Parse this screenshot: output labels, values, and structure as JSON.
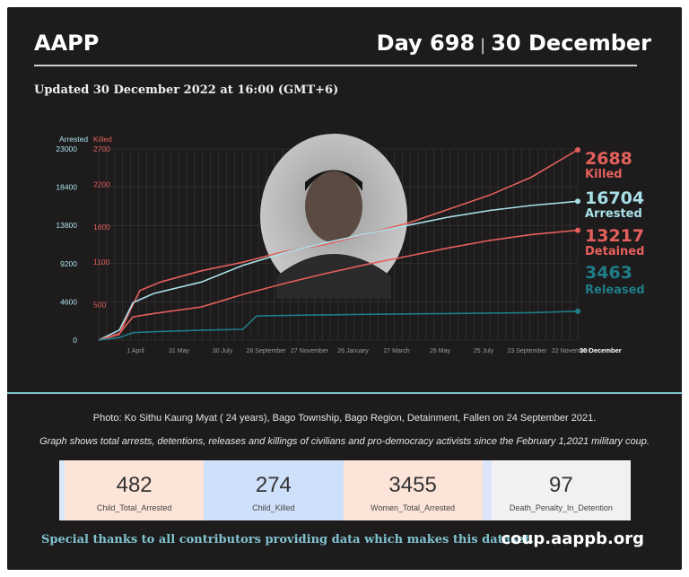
{
  "header": {
    "org": "AAPP",
    "day": "Day 698",
    "separator": "|",
    "date": "30 December",
    "updated": "Updated 30 December 2022 at 16:00 (GMT+6)"
  },
  "colors": {
    "background": "#1d1b1c",
    "killed": "#e4605c",
    "arrested": "#a9e0e8",
    "detained": "#e4605c",
    "released": "#1f7d88",
    "teal_text": "#7fc3cf"
  },
  "chart_data": {
    "type": "line",
    "left_axis": {
      "label": "Arrested",
      "ticks": [
        0,
        4600,
        9200,
        13800,
        18400,
        23000
      ],
      "range": [
        0,
        23000
      ]
    },
    "right_axis": {
      "label": "Killed",
      "ticks": [
        0,
        500,
        1100,
        1600,
        2200,
        2700
      ],
      "range": [
        0,
        2700
      ]
    },
    "x_ticks": [
      "1 April",
      "31 May",
      "30 July",
      "28 September",
      "27 November",
      "26 January",
      "27 March",
      "26 May",
      "25 July",
      "23 September",
      "22 November",
      "30 December"
    ],
    "x_range_days": [
      0,
      698
    ],
    "grid": true,
    "series": [
      {
        "name": "Killed",
        "axis": "right",
        "final_value": 2688,
        "points": [
          [
            0,
            0
          ],
          [
            30,
            80
          ],
          [
            45,
            400
          ],
          [
            60,
            700
          ],
          [
            90,
            820
          ],
          [
            150,
            980
          ],
          [
            210,
            1100
          ],
          [
            270,
            1250
          ],
          [
            330,
            1350
          ],
          [
            390,
            1500
          ],
          [
            450,
            1650
          ],
          [
            510,
            1850
          ],
          [
            570,
            2050
          ],
          [
            630,
            2300
          ],
          [
            698,
            2688
          ]
        ]
      },
      {
        "name": "Arrested",
        "axis": "left",
        "final_value": 16704,
        "points": [
          [
            0,
            0
          ],
          [
            30,
            1200
          ],
          [
            50,
            4500
          ],
          [
            80,
            5600
          ],
          [
            150,
            7000
          ],
          [
            210,
            9000
          ],
          [
            270,
            10500
          ],
          [
            330,
            11700
          ],
          [
            390,
            12800
          ],
          [
            450,
            13800
          ],
          [
            510,
            14800
          ],
          [
            570,
            15600
          ],
          [
            630,
            16200
          ],
          [
            698,
            16704
          ]
        ]
      },
      {
        "name": "Detained",
        "axis": "left",
        "final_value": 13217,
        "points": [
          [
            0,
            0
          ],
          [
            30,
            800
          ],
          [
            50,
            2800
          ],
          [
            80,
            3200
          ],
          [
            150,
            4000
          ],
          [
            210,
            5500
          ],
          [
            270,
            6800
          ],
          [
            330,
            8000
          ],
          [
            390,
            9100
          ],
          [
            450,
            10100
          ],
          [
            510,
            11100
          ],
          [
            570,
            12000
          ],
          [
            630,
            12700
          ],
          [
            698,
            13217
          ]
        ]
      },
      {
        "name": "Released",
        "axis": "left",
        "final_value": 3463,
        "points": [
          [
            0,
            0
          ],
          [
            30,
            300
          ],
          [
            50,
            900
          ],
          [
            80,
            1000
          ],
          [
            150,
            1200
          ],
          [
            210,
            1300
          ],
          [
            230,
            2900
          ],
          [
            300,
            3000
          ],
          [
            390,
            3100
          ],
          [
            450,
            3150
          ],
          [
            510,
            3200
          ],
          [
            570,
            3250
          ],
          [
            630,
            3300
          ],
          [
            698,
            3463
          ]
        ]
      }
    ],
    "end_labels": [
      {
        "value": "2688",
        "name": "Killed"
      },
      {
        "value": "16704",
        "name": "Arrested"
      },
      {
        "value": "13217",
        "name": "Detained"
      },
      {
        "value": "3463",
        "name": "Released"
      }
    ]
  },
  "photo_caption": "Photo: Ko Sithu Kaung Myat ( 24 years),  Bago Township, Bago Region, Detainment, Fallen on 24 September 2021.",
  "graph_caption": "Graph shows total arrests, detentions, releases and killings of civilians and pro-democracy activists since the February 1,2021 military coup.",
  "stats": [
    {
      "value": "482",
      "label": "Child_Total_Arrested"
    },
    {
      "value": "274",
      "label": "Child_Killed"
    },
    {
      "value": "3455",
      "label": "Women_Total_Arrested"
    },
    {
      "value": "97",
      "label": "Death_Penalty_In_Detention"
    }
  ],
  "footer": {
    "thanks": "Special thanks to all contributors providing data which makes this dataset.",
    "site": "coup.aappb.org"
  }
}
